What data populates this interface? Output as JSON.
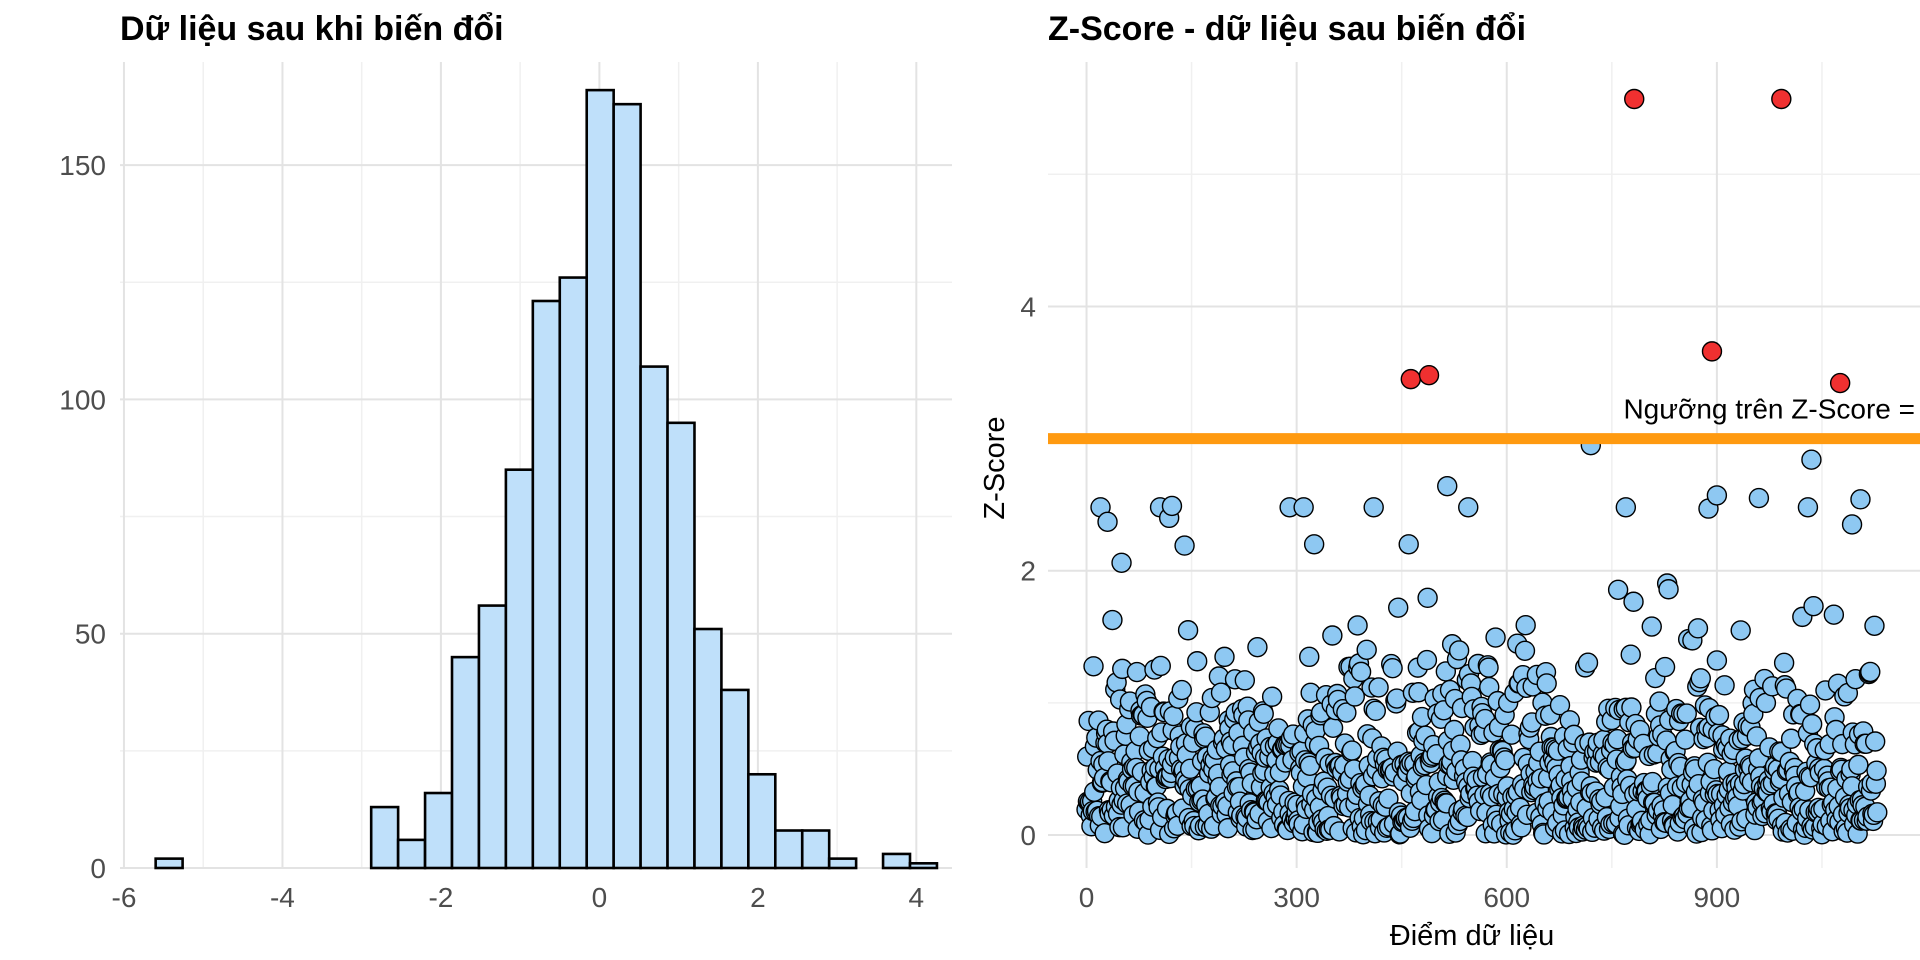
{
  "chart_data": [
    {
      "type": "bar",
      "subtype": "histogram",
      "title": "Dữ liệu sau khi biến đổi",
      "xlabel": "",
      "ylabel": "",
      "xlim": [
        -6.05,
        4.45
      ],
      "ylim": [
        0,
        172
      ],
      "x_ticks": [
        "-6",
        "-4",
        "-2",
        "0",
        "2",
        "4"
      ],
      "y_ticks": [
        "0",
        "50",
        "100",
        "150"
      ],
      "grid": true,
      "fill_color": "#bfe0fa",
      "bins": [
        {
          "x0": -5.6,
          "x1": -5.26,
          "count": 2
        },
        {
          "x0": -5.26,
          "x1": -4.92,
          "count": 0
        },
        {
          "x0": -4.92,
          "x1": -4.58,
          "count": 0
        },
        {
          "x0": -4.58,
          "x1": -4.24,
          "count": 0
        },
        {
          "x0": -4.24,
          "x1": -3.9,
          "count": 0
        },
        {
          "x0": -3.9,
          "x1": -3.56,
          "count": 0
        },
        {
          "x0": -3.56,
          "x1": -3.22,
          "count": 0
        },
        {
          "x0": -3.22,
          "x1": -2.88,
          "count": 0
        },
        {
          "x0": -2.88,
          "x1": -2.54,
          "count": 13
        },
        {
          "x0": -2.54,
          "x1": -2.2,
          "count": 6
        },
        {
          "x0": -2.2,
          "x1": -1.86,
          "count": 16
        },
        {
          "x0": -1.86,
          "x1": -1.52,
          "count": 45
        },
        {
          "x0": -1.52,
          "x1": -1.18,
          "count": 56
        },
        {
          "x0": -1.18,
          "x1": -0.84,
          "count": 85
        },
        {
          "x0": -0.84,
          "x1": -0.5,
          "count": 121
        },
        {
          "x0": -0.5,
          "x1": -0.16,
          "count": 126
        },
        {
          "x0": -0.16,
          "x1": 0.18,
          "count": 166
        },
        {
          "x0": 0.18,
          "x1": 0.52,
          "count": 163
        },
        {
          "x0": 0.52,
          "x1": 0.86,
          "count": 107
        },
        {
          "x0": 0.86,
          "x1": 1.2,
          "count": 95
        },
        {
          "x0": 1.2,
          "x1": 1.54,
          "count": 51
        },
        {
          "x0": 1.54,
          "x1": 1.88,
          "count": 38
        },
        {
          "x0": 1.88,
          "x1": 2.22,
          "count": 20
        },
        {
          "x0": 2.22,
          "x1": 2.56,
          "count": 8
        },
        {
          "x0": 2.56,
          "x1": 2.9,
          "count": 8
        },
        {
          "x0": 2.9,
          "x1": 3.24,
          "count": 2
        },
        {
          "x0": 3.24,
          "x1": 3.58,
          "count": 0
        },
        {
          "x0": 3.58,
          "x1": 3.92,
          "count": 3
        },
        {
          "x0": 3.92,
          "x1": 4.26,
          "count": 1
        }
      ]
    },
    {
      "type": "scatter",
      "title": "Z-Score - dữ liệu sau biến đổi",
      "xlabel": "Điểm dữ liệu",
      "ylabel": "Z-Score",
      "xlim": [
        -55,
        1190
      ],
      "ylim": [
        -0.25,
        5.85
      ],
      "x_ticks": [
        0,
        300,
        600,
        900
      ],
      "y_ticks": [
        0,
        2,
        4
      ],
      "grid": true,
      "n_points": 1130,
      "normal_color": "#8ec8f2",
      "outlier_color": "#f03030",
      "threshold": {
        "y": 3,
        "color": "#ff9a10",
        "label": "Ngưỡng trên Z-Score ="
      },
      "outliers": [
        {
          "x": 463,
          "y": 3.45
        },
        {
          "x": 489,
          "y": 3.48
        },
        {
          "x": 782,
          "y": 5.57
        },
        {
          "x": 893,
          "y": 3.66
        },
        {
          "x": 992,
          "y": 5.57
        },
        {
          "x": 1076,
          "y": 3.42
        }
      ],
      "highlighted_normals": [
        {
          "x": 20,
          "y": 2.48
        },
        {
          "x": 30,
          "y": 2.37
        },
        {
          "x": 50,
          "y": 2.06
        },
        {
          "x": 105,
          "y": 2.48
        },
        {
          "x": 118,
          "y": 2.4
        },
        {
          "x": 122,
          "y": 2.49
        },
        {
          "x": 140,
          "y": 2.19
        },
        {
          "x": 290,
          "y": 2.48
        },
        {
          "x": 310,
          "y": 2.48
        },
        {
          "x": 325,
          "y": 2.2
        },
        {
          "x": 410,
          "y": 2.48
        },
        {
          "x": 460,
          "y": 2.2
        },
        {
          "x": 515,
          "y": 2.64
        },
        {
          "x": 545,
          "y": 2.48
        },
        {
          "x": 720,
          "y": 2.95
        },
        {
          "x": 770,
          "y": 2.48
        },
        {
          "x": 888,
          "y": 2.47
        },
        {
          "x": 900,
          "y": 2.57
        },
        {
          "x": 960,
          "y": 2.55
        },
        {
          "x": 1035,
          "y": 2.84
        },
        {
          "x": 1030,
          "y": 2.48
        },
        {
          "x": 1105,
          "y": 2.54
        },
        {
          "x": 1093,
          "y": 2.35
        }
      ]
    }
  ]
}
